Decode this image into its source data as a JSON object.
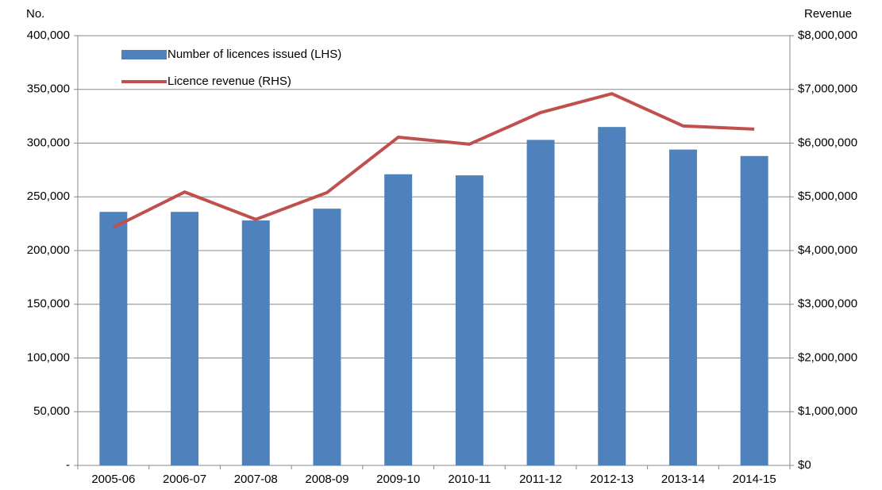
{
  "chart_data": {
    "type": "bar_line",
    "y_label": "No.",
    "y2_label": "Revenue",
    "categories": [
      "2005-06",
      "2006-07",
      "2007-08",
      "2008-09",
      "2009-10",
      "2010-11",
      "2011-12",
      "2012-13",
      "2013-14",
      "2014-15"
    ],
    "series": [
      {
        "name": "Number of licences issued (LHS)",
        "type": "bar",
        "color": "#4f81bd",
        "values": [
          236000,
          236000,
          228000,
          239000,
          271000,
          270000,
          303000,
          315000,
          294000,
          288000
        ]
      },
      {
        "name": "Licence revenue (RHS)",
        "type": "line",
        "axis": "y2",
        "color": "#c0504d",
        "values": [
          4430000,
          5090000,
          4580000,
          5080000,
          6110000,
          5980000,
          6570000,
          6920000,
          6320000,
          6260000
        ]
      }
    ],
    "ylim": [
      0,
      400000
    ],
    "yticks": [
      {
        "value": 0,
        "label": "-"
      },
      {
        "value": 50000,
        "label": "50,000"
      },
      {
        "value": 100000,
        "label": "100,000"
      },
      {
        "value": 150000,
        "label": "150,000"
      },
      {
        "value": 200000,
        "label": "200,000"
      },
      {
        "value": 250000,
        "label": "250,000"
      },
      {
        "value": 300000,
        "label": "300,000"
      },
      {
        "value": 350000,
        "label": "350,000"
      },
      {
        "value": 400000,
        "label": "400,000"
      }
    ],
    "y2lim": [
      0,
      8000000
    ],
    "y2ticks": [
      {
        "value": 0,
        "label": "$0"
      },
      {
        "value": 1000000,
        "label": "$1,000,000"
      },
      {
        "value": 2000000,
        "label": "$2,000,000"
      },
      {
        "value": 3000000,
        "label": "$3,000,000"
      },
      {
        "value": 4000000,
        "label": "$4,000,000"
      },
      {
        "value": 5000000,
        "label": "$5,000,000"
      },
      {
        "value": 6000000,
        "label": "$6,000,000"
      },
      {
        "value": 7000000,
        "label": "$7,000,000"
      },
      {
        "value": 8000000,
        "label": "$8,000,000"
      }
    ],
    "grid": true,
    "legend": "upper left"
  }
}
